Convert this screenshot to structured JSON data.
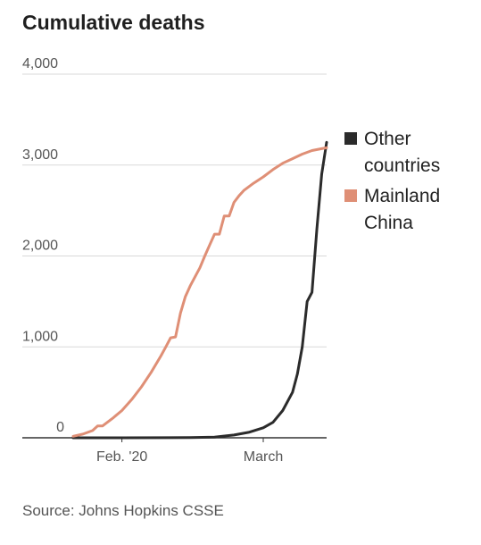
{
  "chart_data": {
    "type": "line",
    "title": "Cumulative deaths",
    "xlabel": "",
    "ylabel": "",
    "ylim": [
      0,
      4000
    ],
    "yticks": [
      0,
      1000,
      2000,
      3000,
      4000
    ],
    "ytick_labels": [
      "0",
      "1,000",
      "2,000",
      "3,000",
      "4,000"
    ],
    "xlim": [
      "2020-01-22",
      "2020-03-14"
    ],
    "xticks": [
      {
        "date": "2020-02-01",
        "label": "Feb. '20"
      },
      {
        "date": "2020-03-01",
        "label": "March"
      }
    ],
    "grid": "horizontal",
    "legend": "right",
    "series": [
      {
        "name": "Other countries",
        "color": "#2b2b2b",
        "points": [
          [
            "2020-01-22",
            0
          ],
          [
            "2020-02-01",
            0
          ],
          [
            "2020-02-10",
            1
          ],
          [
            "2020-02-15",
            3
          ],
          [
            "2020-02-20",
            8
          ],
          [
            "2020-02-24",
            30
          ],
          [
            "2020-02-27",
            60
          ],
          [
            "2020-03-01",
            110
          ],
          [
            "2020-03-03",
            170
          ],
          [
            "2020-03-05",
            300
          ],
          [
            "2020-03-07",
            500
          ],
          [
            "2020-03-08",
            700
          ],
          [
            "2020-03-09",
            1000
          ],
          [
            "2020-03-10",
            1500
          ],
          [
            "2020-03-11",
            1600
          ],
          [
            "2020-03-12",
            2300
          ],
          [
            "2020-03-13",
            2900
          ],
          [
            "2020-03-14",
            3250
          ]
        ]
      },
      {
        "name": "Mainland China",
        "color": "#df8f76",
        "points": [
          [
            "2020-01-22",
            17
          ],
          [
            "2020-01-24",
            40
          ],
          [
            "2020-01-26",
            80
          ],
          [
            "2020-01-27",
            130
          ],
          [
            "2020-01-28",
            130
          ],
          [
            "2020-01-30",
            210
          ],
          [
            "2020-02-01",
            300
          ],
          [
            "2020-02-03",
            420
          ],
          [
            "2020-02-05",
            560
          ],
          [
            "2020-02-07",
            720
          ],
          [
            "2020-02-09",
            900
          ],
          [
            "2020-02-10",
            1000
          ],
          [
            "2020-02-11",
            1100
          ],
          [
            "2020-02-12",
            1110
          ],
          [
            "2020-02-13",
            1370
          ],
          [
            "2020-02-14",
            1550
          ],
          [
            "2020-02-15",
            1670
          ],
          [
            "2020-02-16",
            1770
          ],
          [
            "2020-02-17",
            1870
          ],
          [
            "2020-02-18",
            2000
          ],
          [
            "2020-02-19",
            2120
          ],
          [
            "2020-02-20",
            2240
          ],
          [
            "2020-02-21",
            2240
          ],
          [
            "2020-02-22",
            2440
          ],
          [
            "2020-02-23",
            2440
          ],
          [
            "2020-02-24",
            2590
          ],
          [
            "2020-02-25",
            2660
          ],
          [
            "2020-02-26",
            2720
          ],
          [
            "2020-02-28",
            2800
          ],
          [
            "2020-03-01",
            2870
          ],
          [
            "2020-03-03",
            2950
          ],
          [
            "2020-03-05",
            3020
          ],
          [
            "2020-03-07",
            3070
          ],
          [
            "2020-03-09",
            3120
          ],
          [
            "2020-03-11",
            3160
          ],
          [
            "2020-03-13",
            3180
          ],
          [
            "2020-03-14",
            3190
          ]
        ]
      }
    ]
  },
  "source": "Source: Johns Hopkins CSSE",
  "legend": {
    "items": [
      {
        "lines": [
          "Other",
          "countries"
        ],
        "color": "#2b2b2b"
      },
      {
        "lines": [
          "Mainland",
          "China"
        ],
        "color": "#df8f76"
      }
    ]
  }
}
